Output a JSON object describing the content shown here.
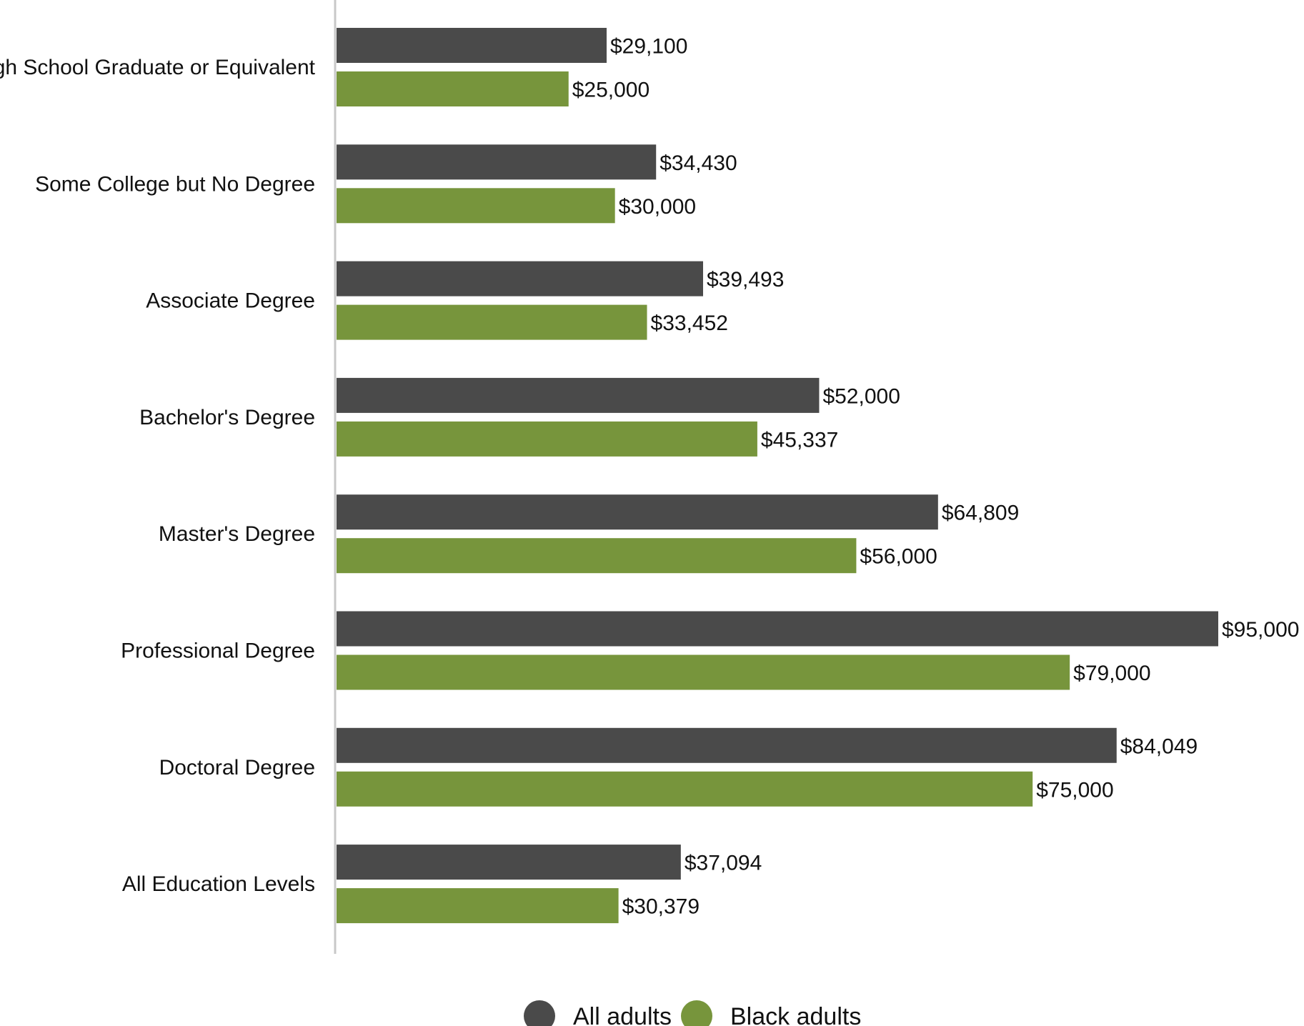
{
  "chart_data": {
    "type": "bar",
    "orientation": "horizontal",
    "categories": [
      "High School Graduate or Equivalent",
      "Some College but No Degree",
      "Associate Degree",
      "Bachelor's Degree",
      "Master's Degree",
      "Professional Degree",
      "Doctoral Degree",
      "All Education Levels"
    ],
    "series": [
      {
        "name": "All adults",
        "color": "#4a4a4a",
        "values": [
          29100,
          34430,
          39493,
          52000,
          64809,
          95000,
          84049,
          37094
        ],
        "labels": [
          "$29,100",
          "$34,430",
          "$39,493",
          "$52,000",
          "$64,809",
          "$95,000",
          "$84,049",
          "$37,094"
        ]
      },
      {
        "name": "Black adults",
        "color": "#77953c",
        "values": [
          25000,
          30000,
          33452,
          45337,
          56000,
          79000,
          75000,
          30379
        ],
        "labels": [
          "$25,000",
          "$30,000",
          "$33,452",
          "$45,337",
          "$56,000",
          "$79,000",
          "$75,000",
          "$30,379"
        ]
      }
    ],
    "title": "",
    "xlabel": "",
    "ylabel": "",
    "xlim": [
      0,
      95000
    ],
    "grid": false,
    "legend_position": "bottom-center",
    "axis_color": "#c8c8c8"
  }
}
